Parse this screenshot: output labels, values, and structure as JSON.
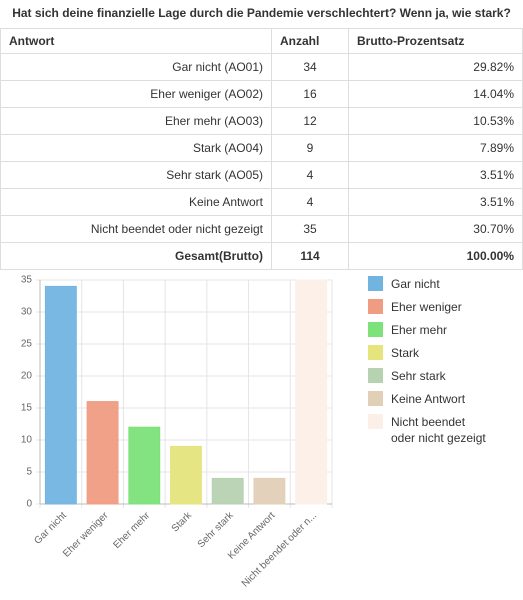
{
  "title": "Hat sich deine finanzielle Lage durch die Pandemie verschlechtert? Wenn ja, wie stark?",
  "table": {
    "header": [
      "Antwort",
      "Anzahl",
      "Brutto-Prozentsatz"
    ],
    "rows": [
      [
        "Gar nicht (AO01)",
        "34",
        "29.82%"
      ],
      [
        "Eher weniger (AO02)",
        "16",
        "14.04%"
      ],
      [
        "Eher mehr (AO03)",
        "12",
        "10.53%"
      ],
      [
        "Stark (AO04)",
        "9",
        "7.89%"
      ],
      [
        "Sehr stark (AO05)",
        "4",
        "3.51%"
      ],
      [
        "Keine Antwort",
        "4",
        "3.51%"
      ],
      [
        "Nicht beendet oder nicht gezeigt",
        "35",
        "30.70%"
      ]
    ],
    "total": [
      "Gesamt(Brutto)",
      "114",
      "100.00%"
    ]
  },
  "chart_data": {
    "type": "bar",
    "categories": [
      "Gar nicht",
      "Eher weniger",
      "Eher mehr",
      "Stark",
      "Sehr stark",
      "Keine Antwort",
      "Nicht beendet oder n..."
    ],
    "values": [
      34,
      16,
      12,
      9,
      4,
      4,
      35
    ],
    "colors": [
      "#72b4e0",
      "#ef9c82",
      "#7de27a",
      "#e5e47d",
      "#b6d2b1",
      "#e2cfb7",
      "#fcefe8"
    ],
    "legend": [
      "Gar nicht",
      "Eher weniger",
      "Eher mehr",
      "Stark",
      "Sehr stark",
      "Keine Antwort",
      "Nicht beendet oder nicht gezeigt"
    ],
    "ylim": [
      0,
      35
    ],
    "yticks": [
      0,
      5,
      10,
      15,
      20,
      25,
      30,
      35
    ],
    "grid": true
  }
}
